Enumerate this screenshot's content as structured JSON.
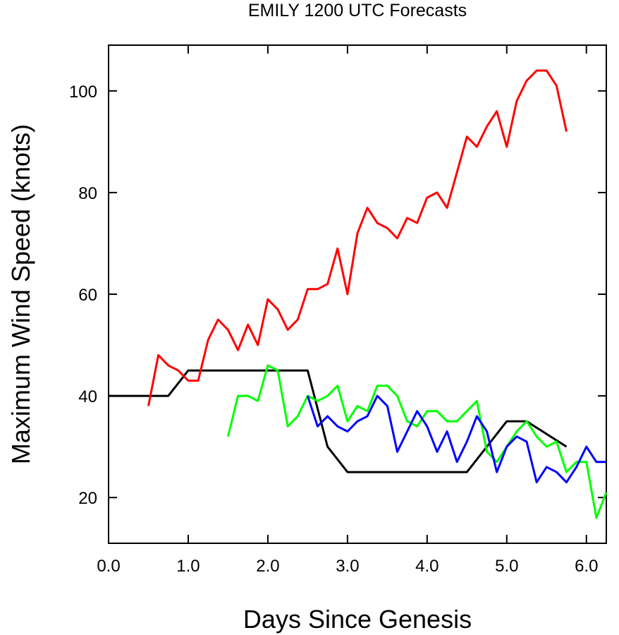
{
  "chart_data": {
    "type": "line",
    "title": "EMILY 1200 UTC Forecasts",
    "xlabel": "Days Since Genesis",
    "ylabel": "Maximum Wind Speed (knots)",
    "xlim": [
      0,
      6.25
    ],
    "ylim": [
      11,
      109
    ],
    "x_ticks": [
      0,
      1,
      2,
      3,
      4,
      5,
      6
    ],
    "x_tick_labels": [
      "0.0",
      "1.0",
      "2.0",
      "3.0",
      "4.0",
      "5.0",
      "6.0"
    ],
    "y_ticks": [
      20,
      40,
      60,
      80,
      100
    ],
    "y_tick_labels": [
      "20",
      "40",
      "60",
      "80",
      "100"
    ],
    "grid": false,
    "legend": "none",
    "series": [
      {
        "color": "#000000",
        "x": [
          0,
          0.75,
          1.0,
          2.5,
          2.75,
          3.0,
          4.5,
          5.0,
          5.25,
          5.75
        ],
        "values": [
          40,
          40,
          45,
          45,
          30,
          25,
          25,
          35,
          35,
          30
        ]
      },
      {
        "color": "#ff0000",
        "x": [
          0.5,
          0.625,
          0.75,
          0.875,
          1.0,
          1.125,
          1.25,
          1.375,
          1.5,
          1.625,
          1.75,
          1.875,
          2.0,
          2.125,
          2.25,
          2.375,
          2.5,
          2.625,
          2.75,
          2.875,
          3.0,
          3.125,
          3.25,
          3.375,
          3.5,
          3.625,
          3.75,
          3.875,
          4.0,
          4.125,
          4.25,
          4.375,
          4.5,
          4.625,
          4.75,
          4.875,
          5.0,
          5.125,
          5.25,
          5.375,
          5.5,
          5.625,
          5.75
        ],
        "values": [
          38,
          48,
          46,
          45,
          43,
          43,
          51,
          55,
          53,
          49,
          54,
          50,
          59,
          57,
          53,
          55,
          61,
          61,
          62,
          69,
          60,
          72,
          77,
          74,
          73,
          71,
          75,
          74,
          79,
          80,
          77,
          84,
          91,
          89,
          93,
          96,
          89,
          98,
          102,
          104,
          104,
          101,
          92
        ]
      },
      {
        "color": "#00ff00",
        "x": [
          1.5,
          1.625,
          1.75,
          1.875,
          2.0,
          2.125,
          2.25,
          2.375,
          2.5,
          2.625,
          2.75,
          2.875,
          3.0,
          3.125,
          3.25,
          3.375,
          3.5,
          3.625,
          3.75,
          3.875,
          4.0,
          4.125,
          4.25,
          4.375,
          4.5,
          4.625,
          4.75,
          4.875,
          5.0,
          5.125,
          5.25,
          5.375,
          5.5,
          5.625,
          5.75,
          5.875,
          6.0,
          6.125,
          6.25
        ],
        "values": [
          32,
          40,
          40,
          39,
          46,
          45,
          34,
          36,
          40,
          39,
          40,
          42,
          35,
          38,
          37,
          42,
          42,
          40,
          35,
          34,
          37,
          37,
          35,
          35,
          37,
          39,
          29,
          27,
          30,
          33,
          35,
          32,
          30,
          31,
          25,
          27,
          27,
          16,
          21
        ]
      },
      {
        "color": "#0000ff",
        "x": [
          2.5,
          2.625,
          2.75,
          2.875,
          3.0,
          3.125,
          3.25,
          3.375,
          3.5,
          3.625,
          3.75,
          3.875,
          4.0,
          4.125,
          4.25,
          4.375,
          4.5,
          4.625,
          4.75,
          4.875,
          5.0,
          5.125,
          5.25,
          5.375,
          5.5,
          5.625,
          5.75,
          5.875,
          6.0,
          6.125,
          6.25
        ],
        "values": [
          40,
          34,
          36,
          34,
          33,
          35,
          36,
          40,
          38,
          29,
          33,
          37,
          34,
          29,
          33,
          27,
          31,
          36,
          33,
          25,
          30,
          32,
          31,
          23,
          26,
          25,
          23,
          26,
          30,
          27,
          27
        ]
      }
    ]
  }
}
